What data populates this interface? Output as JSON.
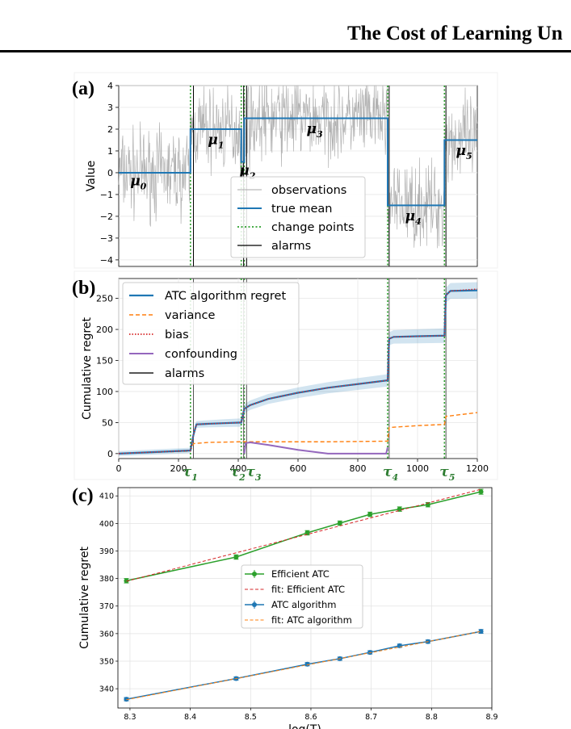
{
  "header": {
    "title": "The Cost of Learning Un"
  },
  "chart_data": [
    {
      "panel": "(a)",
      "type": "line",
      "ylabel": "Value",
      "ylim": [
        -4.3,
        4
      ],
      "yticks": [
        -4,
        -3,
        -2,
        -1,
        0,
        1,
        2,
        3,
        4
      ],
      "xlim": [
        0,
        1200
      ],
      "grid": true,
      "series": [
        {
          "name": "observations",
          "color": "#aaaaaa"
        },
        {
          "name": "true mean",
          "color": "#1f77b4",
          "segments": [
            {
              "x": [
                0,
                240
              ],
              "y": 0
            },
            {
              "x": [
                240,
                410
              ],
              "y": 2
            },
            {
              "x": [
                410,
                420
              ],
              "y": 0.5
            },
            {
              "x": [
                420,
                900
              ],
              "y": 2.5
            },
            {
              "x": [
                900,
                1090
              ],
              "y": -1.5
            },
            {
              "x": [
                1090,
                1200
              ],
              "y": 1.5
            }
          ]
        },
        {
          "name": "change points",
          "color": "#2ca02c",
          "x": [
            240,
            410,
            420,
            900,
            1090
          ]
        },
        {
          "name": "alarms",
          "color": "#000000",
          "x": [
            250,
            418,
            428,
            905,
            1095
          ]
        }
      ],
      "annotations": [
        {
          "text": "μ",
          "sub": "0",
          "x": 60,
          "y": -0.4
        },
        {
          "text": "μ",
          "sub": "1",
          "x": 320,
          "y": 1.5
        },
        {
          "text": "μ",
          "sub": "2",
          "x": 425,
          "y": 0.1
        },
        {
          "text": "μ",
          "sub": "3",
          "x": 650,
          "y": 2.0
        },
        {
          "text": "μ",
          "sub": "4",
          "x": 980,
          "y": -2.0
        },
        {
          "text": "μ",
          "sub": "5",
          "x": 1150,
          "y": 1.0
        }
      ],
      "legend": "lower-center"
    },
    {
      "panel": "(b)",
      "type": "line",
      "ylabel": "Cumulative regret",
      "ylim": [
        -8,
        282
      ],
      "yticks": [
        0,
        50,
        100,
        150,
        200,
        250
      ],
      "xlim": [
        0,
        1200
      ],
      "xticks": [
        0,
        200,
        400,
        600,
        800,
        1000,
        1200
      ],
      "grid": true,
      "x_markers": [
        {
          "label": "τ",
          "sub": "1",
          "x": 240
        },
        {
          "label": "τ",
          "sub": "2",
          "x": 410
        },
        {
          "label": "τ",
          "sub": "3",
          "x": 420
        },
        {
          "label": "τ",
          "sub": "4",
          "x": 900
        },
        {
          "label": "τ",
          "sub": "5",
          "x": 1090
        }
      ],
      "series": [
        {
          "name": "ATC algorithm regret",
          "color": "#1f77b4",
          "x": [
            0,
            240,
            250,
            260,
            300,
            350,
            410,
            420,
            440,
            500,
            600,
            700,
            800,
            900,
            905,
            920,
            1000,
            1090,
            1095,
            1110,
            1200
          ],
          "y": [
            0,
            5,
            30,
            47,
            48,
            49,
            50,
            72,
            78,
            88,
            98,
            106,
            112,
            118,
            185,
            188,
            189,
            190,
            255,
            262,
            263
          ],
          "band": 8
        },
        {
          "name": "variance",
          "color": "#ff7f0e",
          "x": [
            0,
            240,
            250,
            300,
            410,
            420,
            500,
            700,
            900,
            905,
            1000,
            1090,
            1095,
            1200
          ],
          "y": [
            0,
            4,
            16,
            18,
            19,
            19,
            19,
            19,
            20,
            42,
            45,
            47,
            60,
            66
          ]
        },
        {
          "name": "bias",
          "color": "#d62728",
          "x": [
            0,
            240,
            250,
            260,
            300,
            410,
            420,
            440,
            500,
            600,
            700,
            800,
            900,
            905,
            920,
            1090,
            1095,
            1110,
            1200
          ],
          "y": [
            0,
            5,
            30,
            47,
            48,
            50,
            72,
            78,
            88,
            98,
            106,
            112,
            118,
            185,
            188,
            190,
            255,
            262,
            265
          ]
        },
        {
          "name": "confounding",
          "color": "#9467bd",
          "x": [
            420,
            425,
            440,
            500,
            600,
            700,
            800,
            895,
            900
          ],
          "y": [
            0,
            17,
            18,
            14,
            6,
            0,
            0,
            0,
            10
          ]
        },
        {
          "name": "alarms",
          "color": "#555555",
          "x": [
            250,
            418,
            428,
            905,
            1095
          ]
        }
      ],
      "legend": "upper-left"
    },
    {
      "panel": "(c)",
      "type": "line",
      "xlabel": "log(T)",
      "ylabel": "Cumulative regret",
      "xlim": [
        8.28,
        8.9
      ],
      "ylim": [
        333,
        413
      ],
      "xticks": [
        "8.3",
        "8.4",
        "8.5",
        "8.6",
        "8.7",
        "8.8",
        "8.9"
      ],
      "yticks": [
        "340",
        "350",
        "360",
        "370",
        "380",
        "390",
        "400",
        "410"
      ],
      "grid": true,
      "series": [
        {
          "name": "Efficient ATC",
          "color": "#2ca02c",
          "marker": "o",
          "x": [
            8.294,
            8.476,
            8.594,
            8.648,
            8.698,
            8.747,
            8.794,
            8.882
          ],
          "y": [
            379.2,
            387.8,
            396.6,
            400.1,
            403.3,
            405.2,
            406.8,
            411.5
          ],
          "err": [
            0.8,
            0.8,
            0.8,
            0.8,
            0.8,
            0.8,
            0.8,
            0.9
          ]
        },
        {
          "name": "fit: Efficient ATC",
          "color": "#d62728",
          "dash": true,
          "x": [
            8.294,
            8.882
          ],
          "y": [
            379.0,
            412.4
          ]
        },
        {
          "name": "ATC algorithm",
          "color": "#1f77b4",
          "marker": "o",
          "x": [
            8.294,
            8.476,
            8.594,
            8.648,
            8.698,
            8.747,
            8.794,
            8.882
          ],
          "y": [
            336.2,
            343.7,
            348.9,
            350.9,
            353.2,
            355.6,
            357.1,
            360.8
          ],
          "err": [
            0.6,
            0.6,
            0.6,
            0.6,
            0.6,
            0.6,
            0.6,
            0.7
          ]
        },
        {
          "name": "fit: ATC algorithm",
          "color": "#ff7f0e",
          "dash": true,
          "x": [
            8.294,
            8.882
          ],
          "y": [
            336.0,
            360.8
          ]
        }
      ],
      "legend": "center"
    }
  ]
}
